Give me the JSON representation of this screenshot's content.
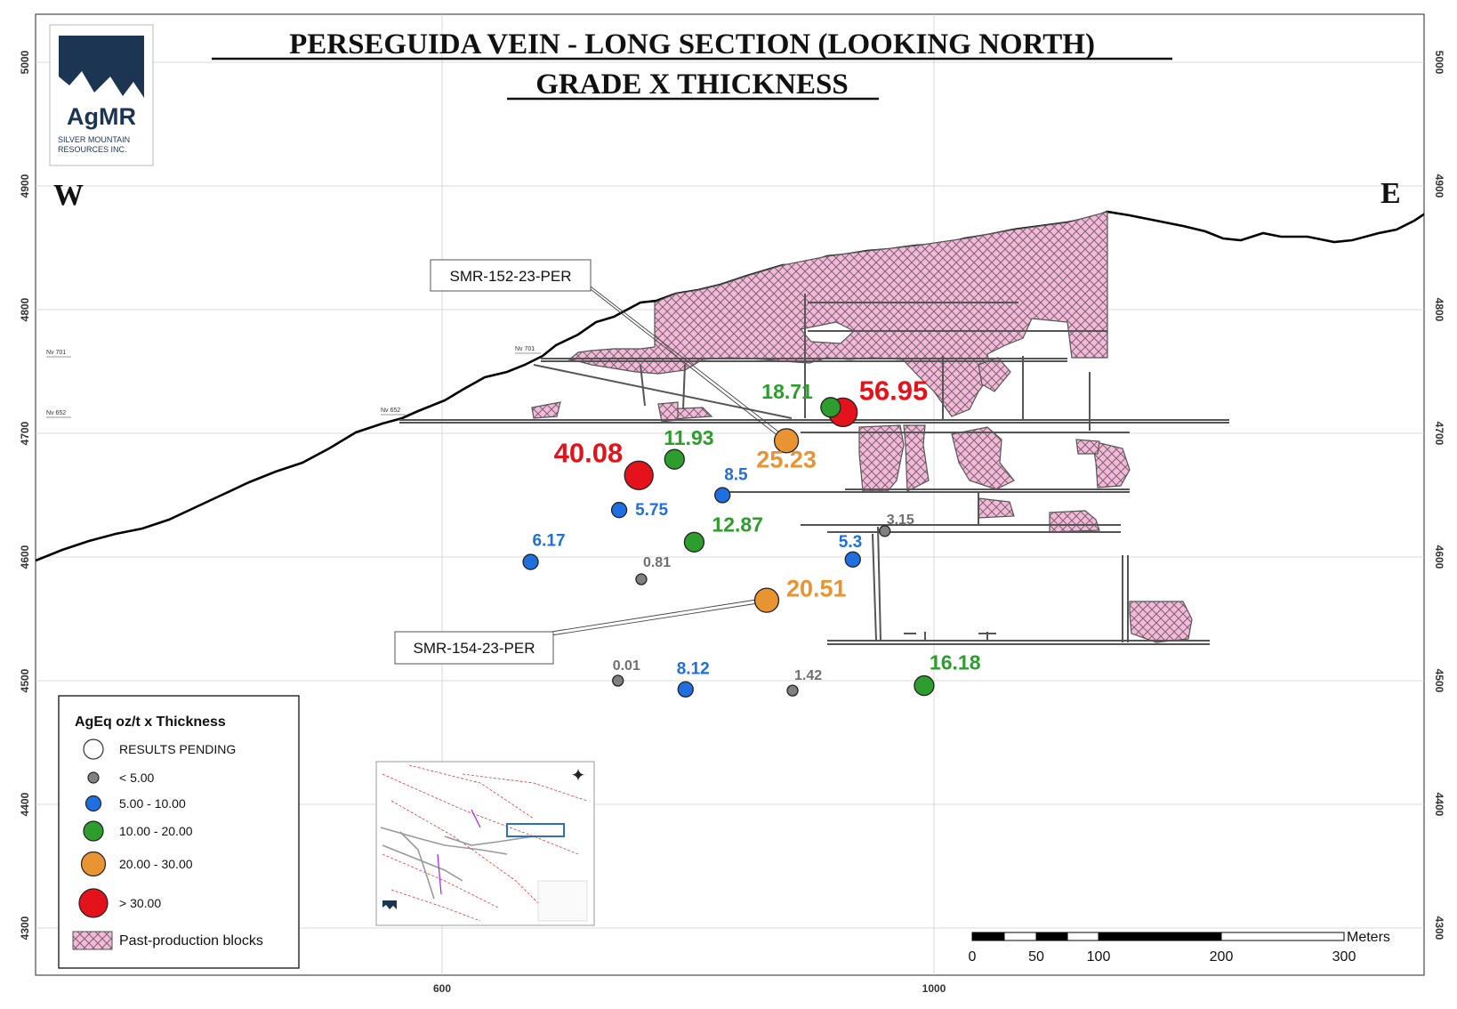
{
  "title": {
    "line1": "PERSEGUIDA VEIN - LONG SECTION (LOOKING NORTH)",
    "line2": "GRADE X THICKNESS"
  },
  "logo": {
    "name": "AgMR",
    "subtitle_line1": "SILVER MOUNTAIN",
    "subtitle_line2": "RESOURCES INC.",
    "color": "#1c3553"
  },
  "directions": {
    "west": "W",
    "east": "E"
  },
  "axes": {
    "elevation_ticks": [
      "4300",
      "4400",
      "4500",
      "4600",
      "4700",
      "4800",
      "4900",
      "5000"
    ],
    "easting_ticks": [
      "600",
      "1000"
    ]
  },
  "level_labels": [
    "Nv 701",
    "Nv 652",
    "Nv 701",
    "Nv 652"
  ],
  "callouts": [
    "SMR-152-23-PER",
    "SMR-154-23-PER"
  ],
  "chart_data": {
    "type": "scatter",
    "series": [
      {
        "name": "AgEq oz/t x Thickness",
        "points": [
          {
            "x": 926,
            "y": 4717,
            "value": 56.95,
            "label": "56.95",
            "class": "> 30.00"
          },
          {
            "x": 760,
            "y": 4666,
            "value": 40.08,
            "label": "40.08",
            "class": "> 30.00"
          },
          {
            "x": 880,
            "y": 4694,
            "value": 25.23,
            "label": "25.23",
            "class": "20.00 - 30.00"
          },
          {
            "x": 864,
            "y": 4565,
            "value": 20.51,
            "label": "20.51",
            "class": "20.00 - 30.00"
          },
          {
            "x": 916,
            "y": 4721,
            "value": 18.71,
            "label": "18.71",
            "class": "10.00 - 20.00"
          },
          {
            "x": 992,
            "y": 4496,
            "value": 16.18,
            "label": "16.18",
            "class": "10.00 - 20.00"
          },
          {
            "x": 805,
            "y": 4612,
            "value": 12.87,
            "label": "12.87",
            "class": "10.00 - 20.00"
          },
          {
            "x": 789,
            "y": 4679,
            "value": 11.93,
            "label": "11.93",
            "class": "10.00 - 20.00"
          },
          {
            "x": 828,
            "y": 4650,
            "value": 8.5,
            "label": "8.5",
            "class": "5.00 - 10.00"
          },
          {
            "x": 798,
            "y": 4493,
            "value": 8.12,
            "label": "8.12",
            "class": "5.00 - 10.00"
          },
          {
            "x": 672,
            "y": 4596,
            "value": 6.17,
            "label": "6.17",
            "class": "5.00 - 10.00"
          },
          {
            "x": 744,
            "y": 4638,
            "value": 5.75,
            "label": "5.75",
            "class": "5.00 - 10.00"
          },
          {
            "x": 934,
            "y": 4598,
            "value": 5.3,
            "label": "5.3",
            "class": "5.00 - 10.00"
          },
          {
            "x": 960,
            "y": 4621,
            "value": 3.15,
            "label": "3.15",
            "class": "< 5.00"
          },
          {
            "x": 885,
            "y": 4492,
            "value": 1.42,
            "label": "1.42",
            "class": "< 5.00"
          },
          {
            "x": 762,
            "y": 4582,
            "value": 0.81,
            "label": "0.81",
            "class": "< 5.00"
          },
          {
            "x": 743,
            "y": 4500,
            "value": 0.01,
            "label": "0.01",
            "class": "< 5.00"
          }
        ]
      }
    ],
    "xlim": [
      270,
      1390
    ],
    "ylim": [
      4290,
      5050
    ],
    "xticks": [
      600,
      1000
    ],
    "yticks": [
      4300,
      4400,
      4500,
      4600,
      4700,
      4800,
      4900,
      5000
    ],
    "grid": true,
    "legend": "bottom-left"
  },
  "legend": {
    "title": "AgEq oz/t x Thickness",
    "items": [
      {
        "label": "RESULTS PENDING",
        "color": "#ffffff"
      },
      {
        "label": "< 5.00",
        "color": "#808080"
      },
      {
        "label": "5.00 - 10.00",
        "color": "#1f6fe0"
      },
      {
        "label": "10.00 - 20.00",
        "color": "#2d9e2d"
      },
      {
        "label": "20.00 - 30.00",
        "color": "#e89433"
      },
      {
        "label": "> 30.00",
        "color": "#e3121b"
      },
      {
        "label": "Past-production blocks",
        "color": "#f4b8d8"
      }
    ]
  },
  "scale_bar": {
    "unit": "Meters",
    "labels": [
      "0",
      "50",
      "100",
      "200",
      "300"
    ]
  },
  "colors": {
    "high": "#e3121b",
    "orange": "#e89433",
    "green": "#2d9e2d",
    "blue": "#1f6fe0",
    "grey": "#808080",
    "pink": "#f4b8d8",
    "hatch": "#6e5a66"
  }
}
